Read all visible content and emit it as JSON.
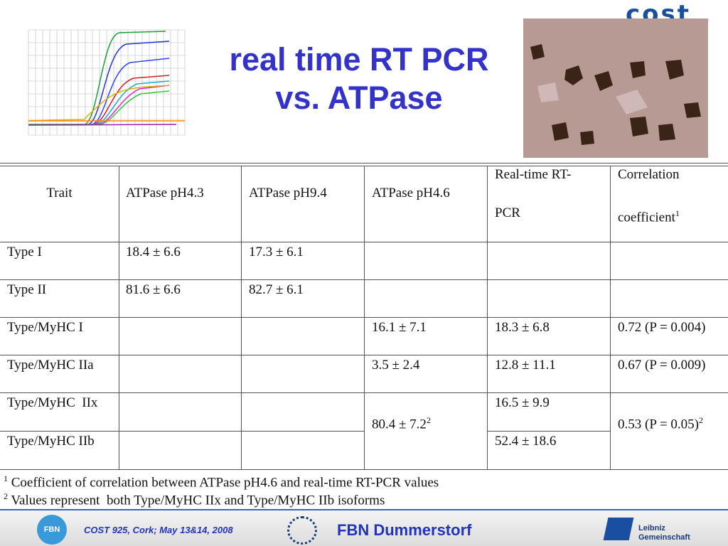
{
  "header": {
    "logo": "cost",
    "title_lines": [
      "real time RT PCR",
      "vs. ATPase"
    ]
  },
  "table": {
    "header": [
      [
        "Trait"
      ],
      [
        "ATPase pH4.3"
      ],
      [
        "ATPase pH9.4"
      ],
      [
        "ATPase pH4.6"
      ],
      [
        "Real-time RT-",
        "PCR"
      ],
      [
        "Correlation",
        "coefficient"
      ]
    ],
    "header_sup": "1",
    "rows": [
      {
        "trait": "Type I",
        "ph43": "18.4 ± 6.6",
        "ph94": "17.3 ± 6.1"
      },
      {
        "trait": "Type II",
        "ph43": "81.6 ± 6.6",
        "ph94": "82.7 ± 6.1"
      },
      {
        "trait": "Type/MyHC I",
        "ph46": "16.1 ± 7.1",
        "pcr": "18.3 ± 6.8",
        "correlation": "0.72 (P = 0.004)"
      },
      {
        "trait": "Type/MyHC IIa",
        "ph46": "3.5 ± 2.4",
        "pcr": "12.8 ± 11.1",
        "correlation": "0.67 (P = 0.009)"
      },
      {
        "trait": "Type/MyHC  IIx",
        "pcr": "16.5 ± 9.9"
      },
      {
        "trait": "Type/MyHC IIb",
        "pcr": "52.4 ± 18.6"
      }
    ],
    "merged": {
      "ph46": "80.4 ± 7.2",
      "ph46_sup": "2",
      "correlation": "0.53 (P = 0.05)",
      "correlation_sup": "2"
    }
  },
  "footnotes": [
    {
      "sup": "1",
      "text": "Coefficient of correlation between ATPase pH4.6 and real-time RT-PCR values"
    },
    {
      "sup": "2",
      "text": "Values represent  both Type/MyHC IIx and Type/MyHC IIb isoforms"
    }
  ],
  "footer": {
    "fbn_logo": "FBN",
    "event": "COST 925, Cork; May 13&14, 2008",
    "institute": "FBN Dummerstorf",
    "leibniz": [
      "Leibniz",
      "Gemeinschaft"
    ]
  }
}
